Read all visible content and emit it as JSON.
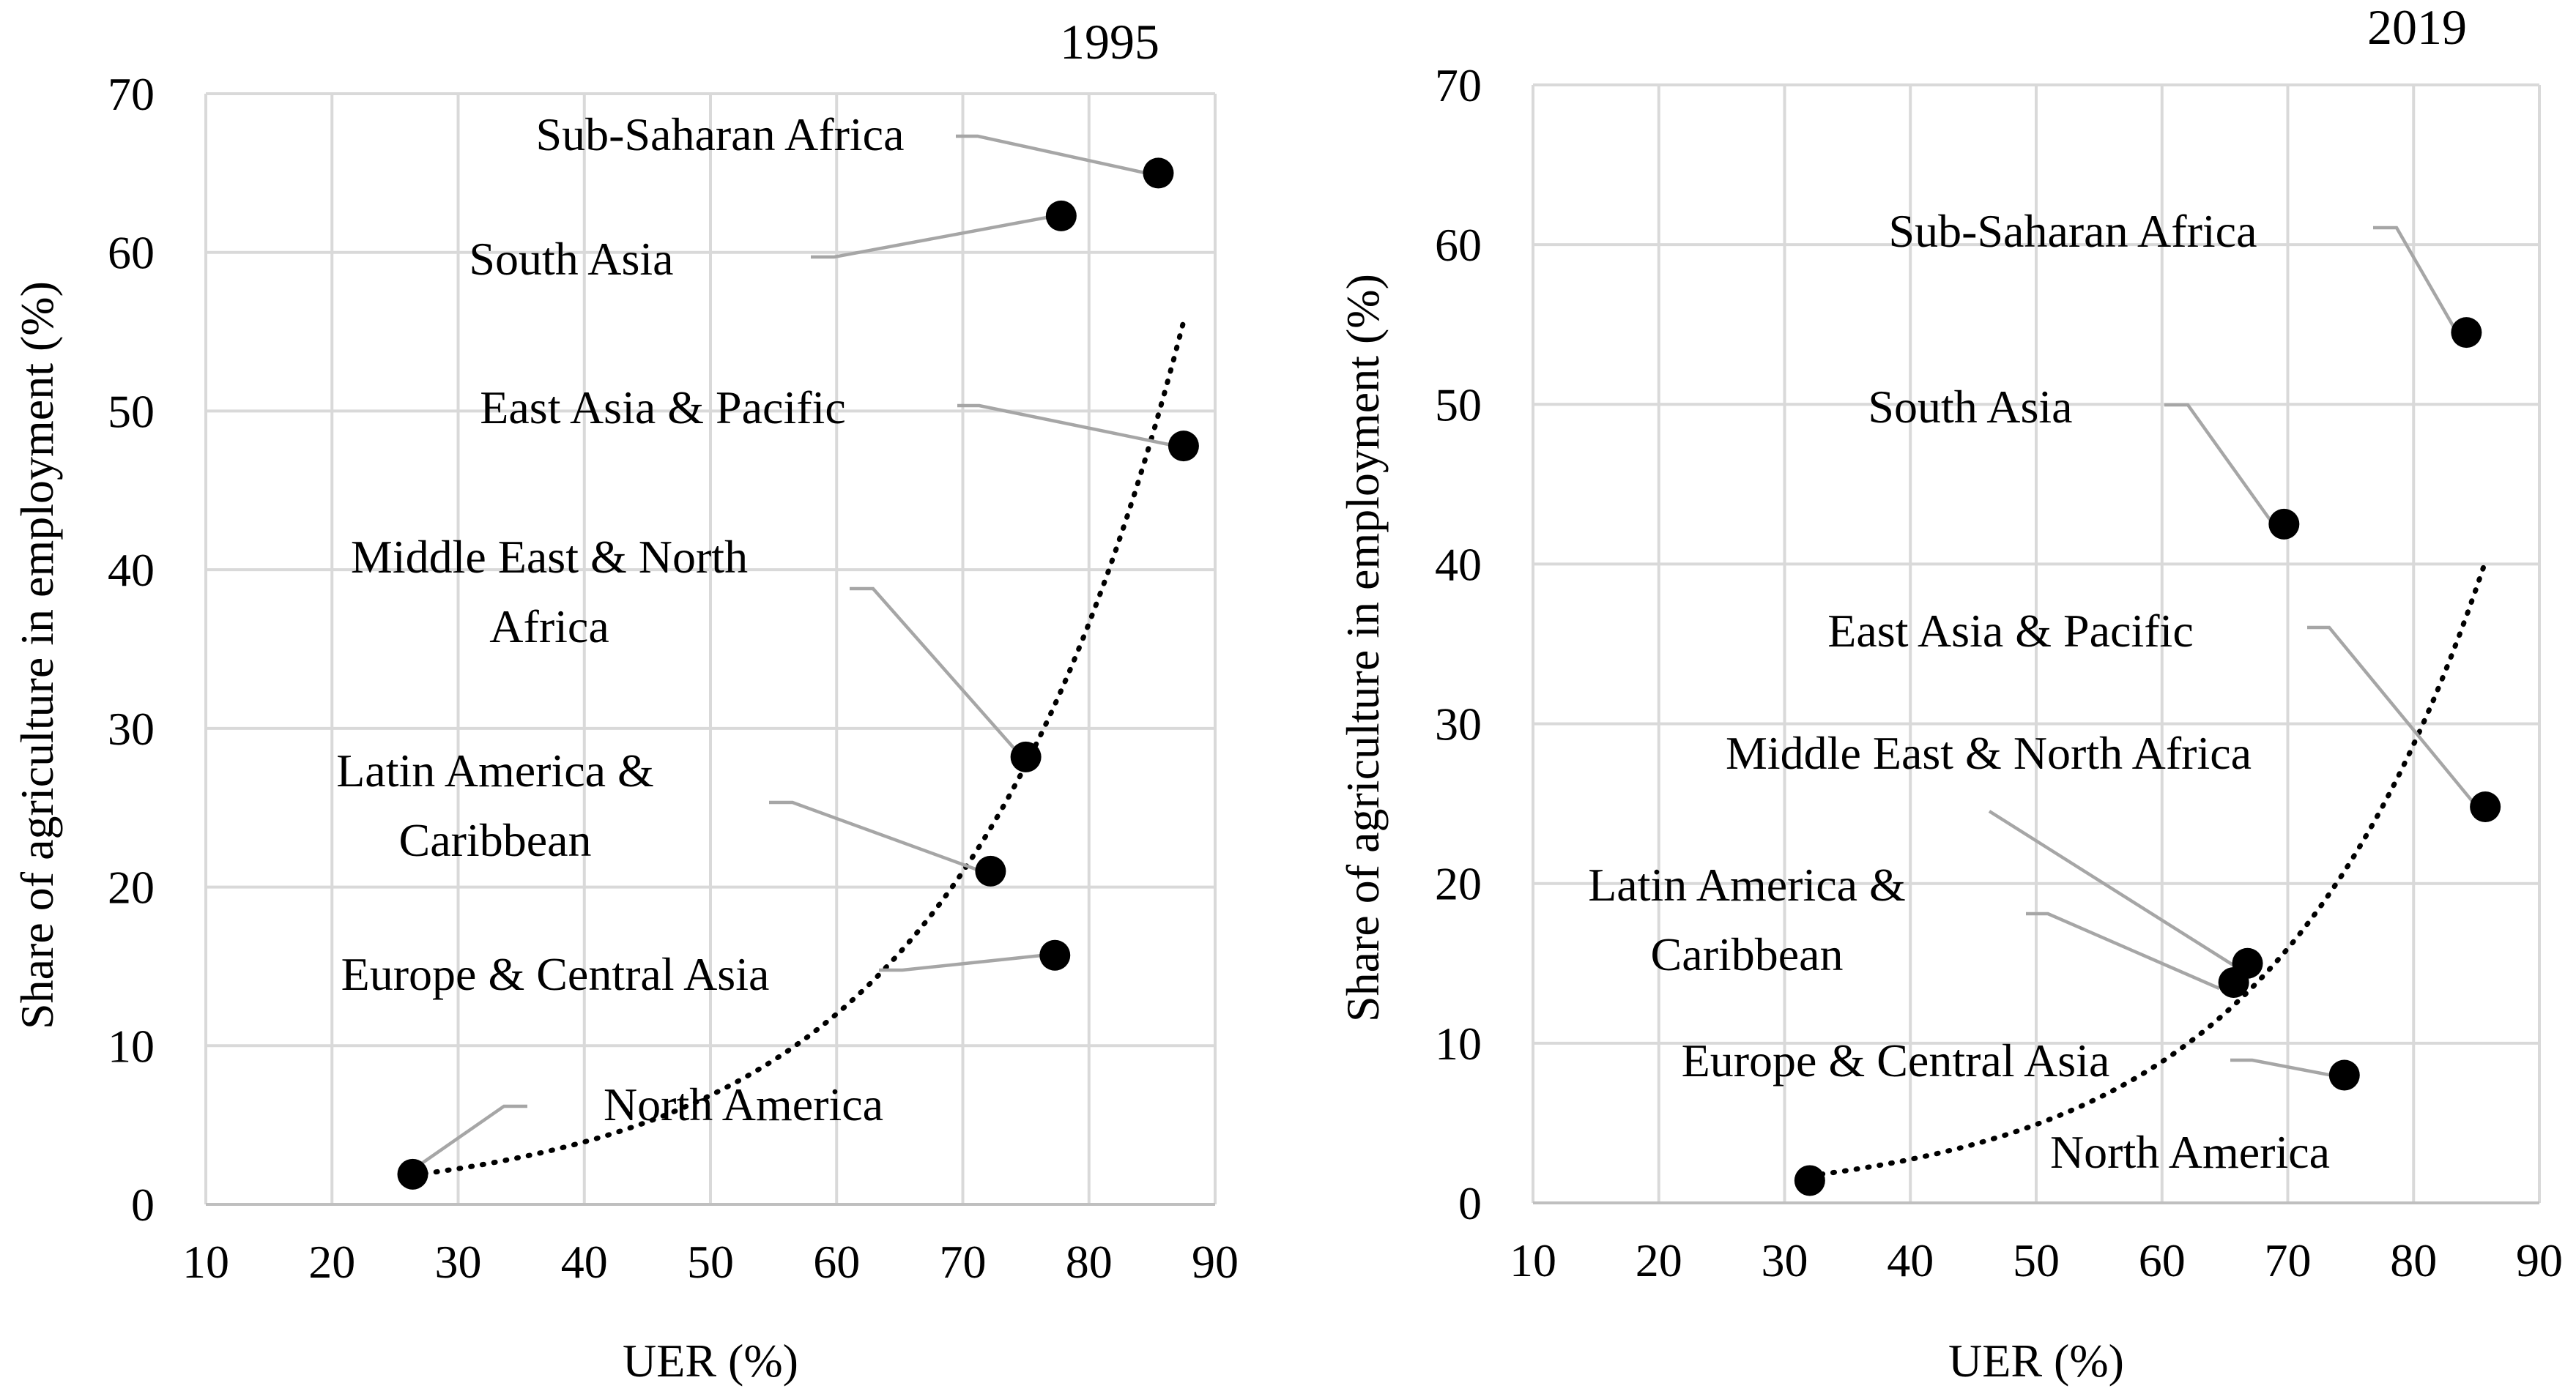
{
  "chart_data": [
    {
      "type": "scatter",
      "title": "1995",
      "xlabel": "UER (%)",
      "ylabel": "Share of agriculture in employment (%)",
      "xlim": [
        10,
        90
      ],
      "ylim": [
        0,
        70
      ],
      "xticks": [
        "10",
        "20",
        "30",
        "40",
        "50",
        "60",
        "70",
        "80",
        "90"
      ],
      "yticks": [
        "0",
        "10",
        "20",
        "30",
        "40",
        "50",
        "60",
        "70"
      ],
      "grid": true,
      "trendline": "exponential, dotted",
      "points": [
        {
          "label": "Sub-Saharan Africa",
          "x": 85.5,
          "y": 65.0
        },
        {
          "label": "South Asia",
          "x": 77.8,
          "y": 62.3
        },
        {
          "label": "East Asia & Pacific",
          "x": 87.5,
          "y": 47.8
        },
        {
          "label": "Middle East & North Africa",
          "x": 75.0,
          "y": 28.2
        },
        {
          "label": "Latin America & Caribbean",
          "x": 72.2,
          "y": 21.0
        },
        {
          "label": "Europe & Central Asia",
          "x": 77.3,
          "y": 15.7
        },
        {
          "label": "North America",
          "x": 26.4,
          "y": 1.9
        }
      ]
    },
    {
      "type": "scatter",
      "title": "2019",
      "xlabel": "UER (%)",
      "ylabel": "Share of agriculture in employment (%)",
      "xlim": [
        10,
        90
      ],
      "ylim": [
        0,
        70
      ],
      "xticks": [
        "10",
        "20",
        "30",
        "40",
        "50",
        "60",
        "70",
        "80",
        "90"
      ],
      "yticks": [
        "0",
        "10",
        "20",
        "30",
        "40",
        "50",
        "60",
        "70"
      ],
      "grid": true,
      "trendline": "exponential, dotted",
      "points": [
        {
          "label": "Sub-Saharan Africa",
          "x": 84.2,
          "y": 54.5
        },
        {
          "label": "South Asia",
          "x": 69.7,
          "y": 42.5
        },
        {
          "label": "East Asia & Pacific",
          "x": 85.7,
          "y": 24.8
        },
        {
          "label": "Middle East & North Africa",
          "x": 66.8,
          "y": 15.0
        },
        {
          "label": "Latin America & Caribbean",
          "x": 65.7,
          "y": 13.8
        },
        {
          "label": "Europe & Central Asia",
          "x": 74.5,
          "y": 8.0
        },
        {
          "label": "North America",
          "x": 32.0,
          "y": 1.4
        }
      ]
    }
  ]
}
